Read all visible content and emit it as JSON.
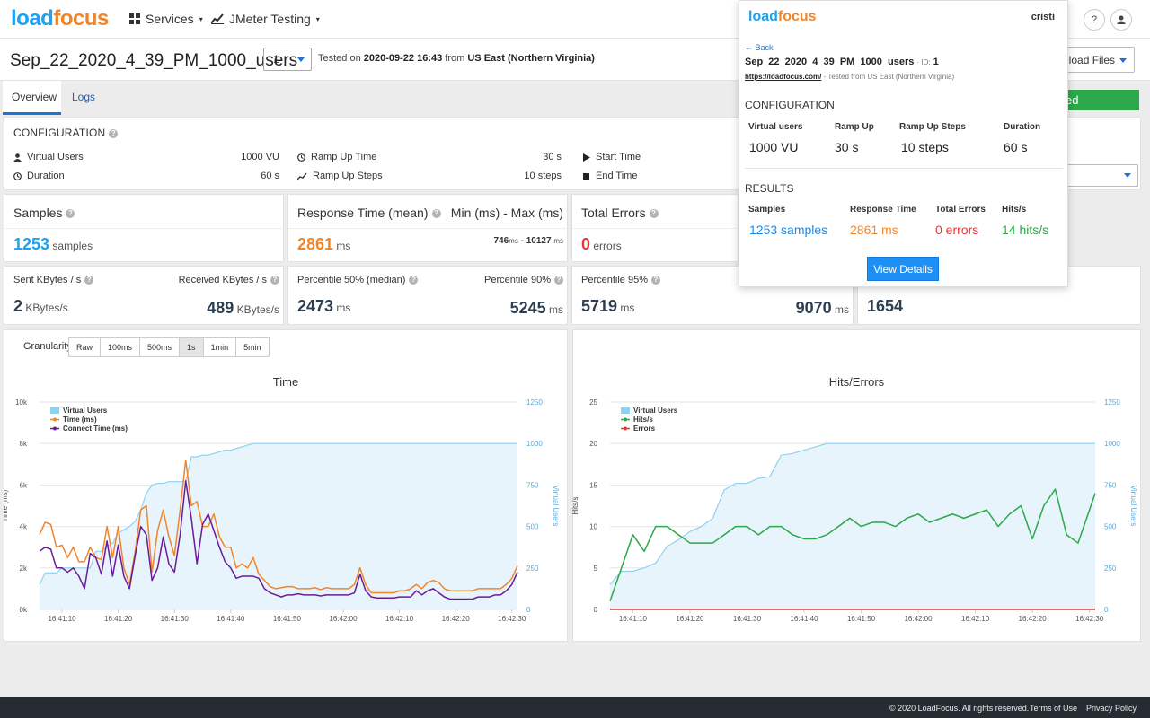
{
  "nav": {
    "logo_part1": "load",
    "logo_part2": "focus",
    "services": "Services",
    "jmeter": "JMeter Testing",
    "help": "?"
  },
  "test": {
    "name": "Sep_22_2020_4_39_PM_1000_users",
    "run": "1",
    "tested_on_prefix": "Tested on",
    "tested_on_date": "2020-09-22 16:43",
    "from_word": "from",
    "location": "US East (Northern Virginia)",
    "download_label": "nload Files"
  },
  "tabs": [
    "Overview",
    "Logs"
  ],
  "status_label": "ed",
  "config": {
    "title": "CONFIGURATION",
    "virtual_users_label": "Virtual Users",
    "virtual_users_value": "1000 VU",
    "duration_label": "Duration",
    "duration_value": "60 s",
    "ramp_up_label": "Ramp Up Time",
    "ramp_up_value": "30 s",
    "ramp_steps_label": "Ramp Up Steps",
    "ramp_steps_value": "10 steps",
    "start_label": "Start Time",
    "end_label": "End Time"
  },
  "metrics": {
    "samples_label": "Samples",
    "samples_value": "1253",
    "samples_unit": "samples",
    "resp_label": "Response Time (mean)",
    "resp_value": "2861",
    "resp_unit": "ms",
    "minmax_label": "Min (ms) - Max (ms)",
    "min_value": "746",
    "max_value": "10127",
    "ms": "ms",
    "dash": " - ",
    "errors_label": "Total Errors",
    "errors_value": "0",
    "errors_unit": "errors",
    "sent_label": "Sent KBytes / s",
    "sent_value": "2",
    "sent_unit": "KBytes/s",
    "recv_label": "Received KBytes / s",
    "recv_value": "489",
    "recv_unit": "KBytes/s",
    "p50_label": "Percentile 50% (median)",
    "p50_value": "2473",
    "p90_label": "Percentile 90%",
    "p90_value": "5245",
    "p95_label": "Percentile 95%",
    "p95_value": "5719",
    "p99_value": "9070",
    "extra_value": "1654"
  },
  "granularity": {
    "label": "Granularity",
    "options": [
      "Raw",
      "100ms",
      "500ms",
      "1s",
      "1min",
      "5min"
    ],
    "selected": "1s"
  },
  "popup": {
    "logo_part1": "load",
    "logo_part2": "focus",
    "user": "cristi",
    "back": "← Back",
    "name": "Sep_22_2020_4_39_PM_1000_users",
    "id_label": "· ID:",
    "id_value": "1",
    "url": "https://loadfocus.com/",
    "url_suffix": "- Tested from US East (Northern Virginia)",
    "config_title": "CONFIGURATION",
    "cfg_labels": [
      "Virtual users",
      "Ramp Up",
      "Ramp Up Steps",
      "Duration"
    ],
    "cfg_values": [
      "1000 VU",
      "30 s",
      "10 steps",
      "60 s"
    ],
    "results_title": "RESULTS",
    "res_labels": [
      "Samples",
      "Response Time",
      "Total Errors",
      "Hits/s"
    ],
    "res_values": [
      "1253 samples",
      "2861 ms",
      "0 errors",
      "14 hits/s"
    ],
    "button": "View Details"
  },
  "footer": {
    "copyright": "© 2020 LoadFocus. All rights reserved.",
    "terms": "Terms of Use",
    "privacy": "Privacy Policy"
  },
  "colors": {
    "blue": "#1ea1f1",
    "orange": "#f0862b",
    "red": "#e53935",
    "green": "#2ba84a",
    "purple": "#6a1b9a",
    "vu": "#8fd2f0"
  },
  "chart_data": [
    {
      "type": "line",
      "title": "Time",
      "ylabel": "Time (ms)",
      "y2label": "Virtual Users",
      "ylim": [
        0,
        10000
      ],
      "y2lim": [
        0,
        1250
      ],
      "yticks": [
        "0k",
        "2k",
        "4k",
        "6k",
        "8k",
        "10k"
      ],
      "y2ticks": [
        "0",
        "250",
        "500",
        "750",
        "1000",
        "1250"
      ],
      "xticks": [
        "16:41:10",
        "16:41:20",
        "16:41:30",
        "16:41:40",
        "16:41:50",
        "16:42:00",
        "16:42:10",
        "16:42:20",
        "16:42:30"
      ],
      "x": [
        6,
        7,
        8,
        9,
        10,
        11,
        12,
        13,
        14,
        15,
        16,
        17,
        18,
        19,
        20,
        21,
        22,
        23,
        24,
        25,
        26,
        27,
        28,
        29,
        30,
        31,
        32,
        33,
        34,
        35,
        36,
        37,
        38,
        39,
        40,
        41,
        42,
        43,
        44,
        45,
        46,
        47,
        48,
        49,
        50,
        51,
        52,
        53,
        54,
        55,
        56,
        57,
        58,
        59,
        60,
        61,
        62,
        63,
        64,
        65,
        66,
        67,
        68,
        69,
        70,
        71,
        72,
        73,
        74,
        75,
        76,
        77,
        78,
        79,
        80,
        81,
        82,
        83,
        84,
        85,
        86,
        87,
        88,
        89,
        90,
        91
      ],
      "series": [
        {
          "name": "Virtual Users",
          "axis": "y2",
          "values": [
            150,
            220,
            220,
            220,
            250,
            250,
            250,
            250,
            250,
            250,
            350,
            350,
            380,
            400,
            460,
            480,
            500,
            530,
            600,
            700,
            750,
            760,
            760,
            770,
            770,
            770,
            770,
            920,
            920,
            930,
            930,
            940,
            950,
            960,
            960,
            970,
            980,
            990,
            1000,
            1000,
            1000,
            1000,
            1000,
            1000,
            1000,
            1000,
            1000,
            1000,
            1000,
            1000,
            1000,
            1000,
            1000,
            1000,
            1000,
            1000,
            1000,
            1000,
            1000,
            1000,
            1000,
            1000,
            1000,
            1000,
            1000,
            1000,
            1000,
            1000,
            1000,
            1000,
            1000,
            1000,
            1000,
            1000,
            1000,
            1000,
            1000,
            1000,
            1000,
            1000,
            1000,
            1000,
            1000,
            1000,
            1000,
            1000
          ]
        },
        {
          "name": "Time (ms)",
          "axis": "y",
          "values": [
            3600,
            4200,
            4100,
            3000,
            3100,
            2500,
            3000,
            2300,
            2300,
            3000,
            2500,
            2400,
            4000,
            2500,
            4000,
            2000,
            1200,
            2800,
            4800,
            5000,
            1800,
            3800,
            4800,
            3500,
            2600,
            4800,
            7200,
            5000,
            5200,
            4000,
            4000,
            4600,
            3500,
            3000,
            3000,
            2000,
            2200,
            2000,
            2500,
            1700,
            1400,
            1100,
            1000,
            1050,
            1100,
            1100,
            1000,
            1000,
            1000,
            1050,
            950,
            1050,
            1000,
            1000,
            1000,
            1000,
            1200,
            2000,
            1200,
            800,
            800,
            800,
            800,
            800,
            900,
            900,
            1000,
            1200,
            1000,
            1300,
            1400,
            1300,
            1000,
            900,
            900,
            900,
            900,
            900,
            1000,
            1000,
            1000,
            1000,
            1000,
            1200,
            1500,
            2100
          ]
        },
        {
          "name": "Connect Time (ms)",
          "axis": "y",
          "values": [
            2800,
            3000,
            2900,
            2000,
            2000,
            1800,
            2000,
            1600,
            1000,
            2700,
            2500,
            1700,
            3300,
            1600,
            3100,
            1600,
            1000,
            2600,
            4000,
            3600,
            1400,
            2000,
            3500,
            2200,
            1800,
            3600,
            6200,
            4400,
            2200,
            4100,
            4600,
            3800,
            3000,
            2300,
            2000,
            1500,
            1600,
            1600,
            1600,
            1500,
            1000,
            800,
            700,
            600,
            700,
            700,
            750,
            700,
            700,
            700,
            650,
            700,
            700,
            700,
            700,
            700,
            800,
            1700,
            900,
            600,
            550,
            550,
            550,
            550,
            600,
            600,
            600,
            900,
            700,
            900,
            1000,
            800,
            600,
            500,
            500,
            500,
            500,
            500,
            600,
            600,
            600,
            700,
            700,
            900,
            1200,
            1800
          ]
        }
      ]
    },
    {
      "type": "line",
      "title": "Hits/Errors",
      "ylabel": "Hits/s",
      "y2label": "Virtual Users",
      "ylim": [
        0,
        25
      ],
      "y2lim": [
        0,
        1250
      ],
      "yticks": [
        "0",
        "5",
        "10",
        "15",
        "20",
        "25"
      ],
      "y2ticks": [
        "0",
        "250",
        "500",
        "750",
        "1000",
        "1250"
      ],
      "xticks": [
        "16:41:10",
        "16:41:20",
        "16:41:30",
        "16:41:40",
        "16:41:50",
        "16:42:00",
        "16:42:10",
        "16:42:20",
        "16:42:30"
      ],
      "x": [
        6,
        8,
        10,
        12,
        14,
        16,
        18,
        20,
        22,
        24,
        26,
        28,
        30,
        32,
        34,
        36,
        38,
        40,
        42,
        44,
        46,
        48,
        50,
        52,
        54,
        56,
        58,
        60,
        62,
        64,
        66,
        68,
        70,
        72,
        74,
        76,
        78,
        80,
        82,
        84,
        86,
        88,
        90,
        91
      ],
      "series": [
        {
          "name": "Virtual Users",
          "axis": "y2",
          "values": [
            150,
            230,
            230,
            250,
            280,
            380,
            420,
            470,
            500,
            550,
            720,
            760,
            760,
            790,
            800,
            930,
            940,
            960,
            980,
            1000,
            1000,
            1000,
            1000,
            1000,
            1000,
            1000,
            1000,
            1000,
            1000,
            1000,
            1000,
            1000,
            1000,
            1000,
            1000,
            1000,
            1000,
            1000,
            1000,
            1000,
            1000,
            1000,
            1000,
            1000
          ]
        },
        {
          "name": "Hits/s",
          "axis": "y",
          "values": [
            1,
            5,
            9,
            7,
            10,
            10,
            9,
            8,
            8,
            8,
            9,
            10,
            10,
            9,
            10,
            10,
            9,
            8.5,
            8.5,
            9,
            10,
            11,
            10,
            10.5,
            10.5,
            10,
            11,
            11.5,
            10.5,
            11,
            11.5,
            11,
            11.5,
            12,
            10,
            11.5,
            12.5,
            8.5,
            12.5,
            14.5,
            9,
            8,
            12,
            14
          ]
        },
        {
          "name": "Errors",
          "axis": "y",
          "values": [
            0,
            0,
            0,
            0,
            0,
            0,
            0,
            0,
            0,
            0,
            0,
            0,
            0,
            0,
            0,
            0,
            0,
            0,
            0,
            0,
            0,
            0,
            0,
            0,
            0,
            0,
            0,
            0,
            0,
            0,
            0,
            0,
            0,
            0,
            0,
            0,
            0,
            0,
            0,
            0,
            0,
            0,
            0,
            0
          ]
        }
      ]
    }
  ]
}
